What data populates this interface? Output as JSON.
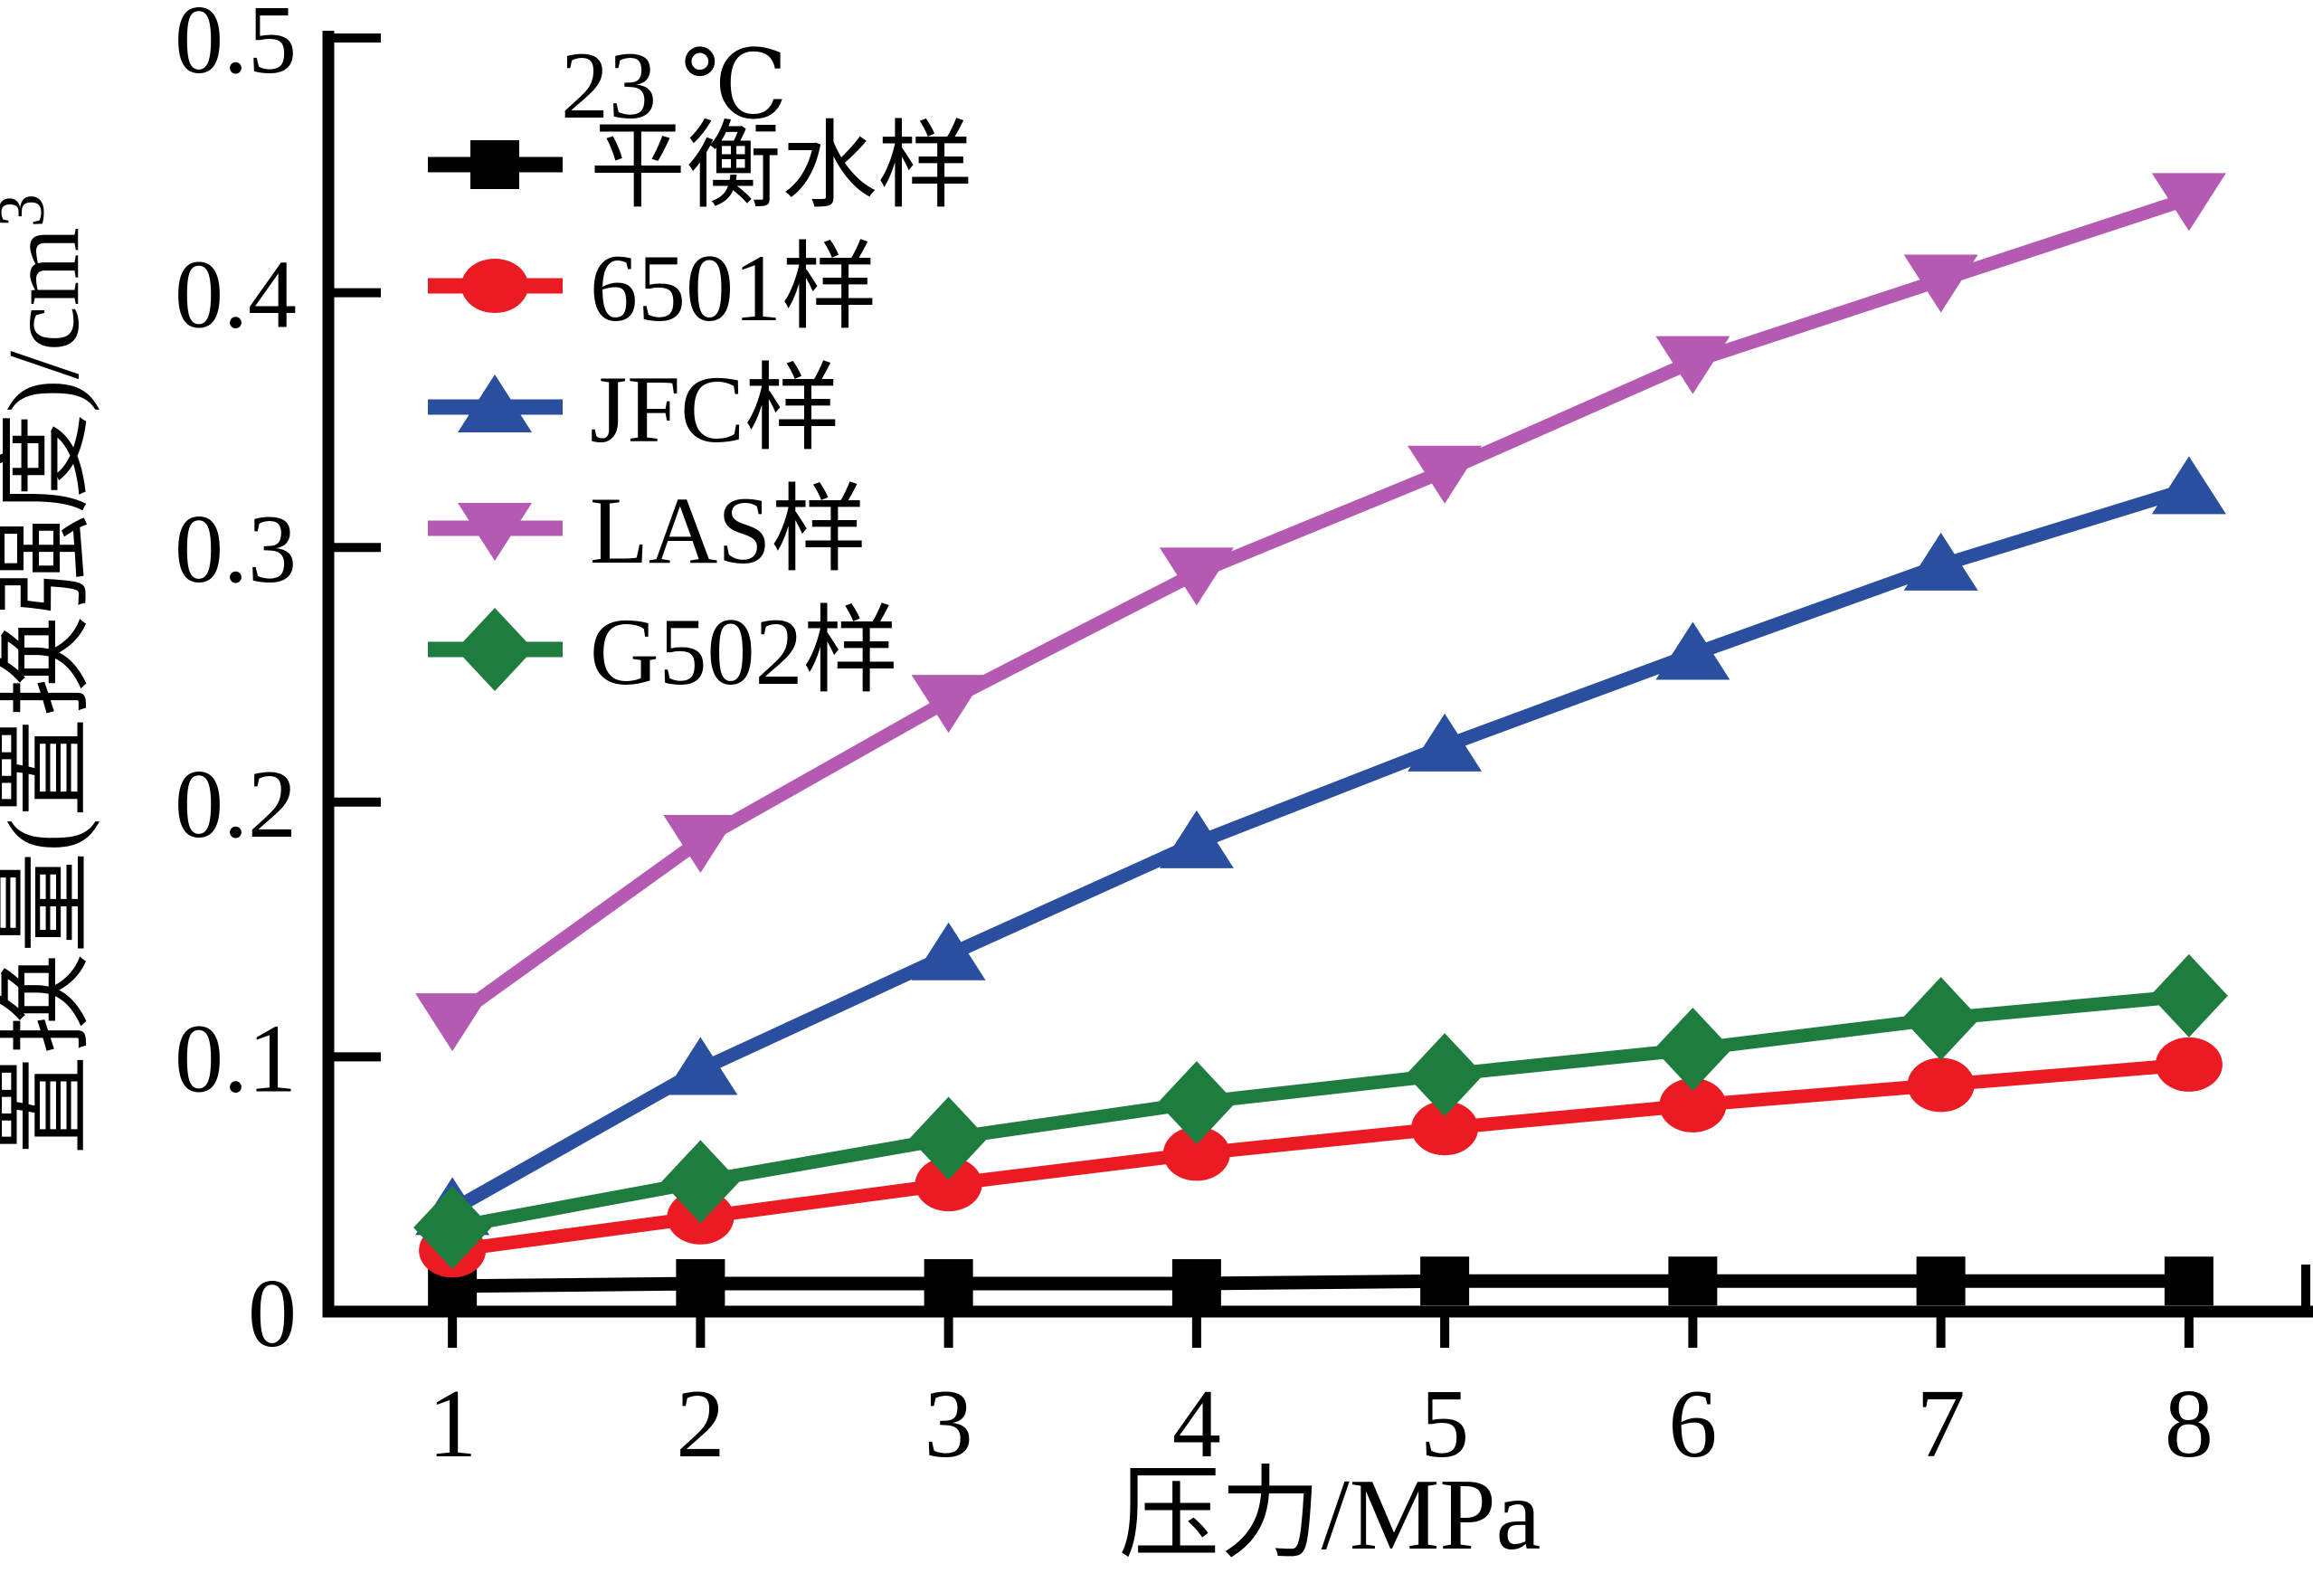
{
  "figure": {
    "background": "#ffffff"
  },
  "chart_data": {
    "type": "line",
    "legend_title": "23 ℃",
    "xlabel": "压力/MPa",
    "ylabel": "置换量(置换强度)/cm³",
    "ylabel_base": "置换量(置换强度)/cm",
    "ylabel_superscript": "3",
    "x": [
      1,
      2,
      3,
      4,
      5,
      6,
      7,
      8
    ],
    "xticks": [
      1,
      2,
      3,
      4,
      5,
      6,
      7,
      8
    ],
    "xtick_labels": [
      "1",
      "2",
      "3",
      "4",
      "5",
      "6",
      "7",
      "8"
    ],
    "xlim": [
      0.5,
      8.5
    ],
    "ylim": [
      0,
      0.5
    ],
    "yticks": [
      0,
      0.1,
      0.2,
      0.3,
      0.4,
      0.5
    ],
    "ytick_labels": [
      "0",
      "0.1",
      "0.2",
      "0.3",
      "0.4",
      "0.5"
    ],
    "grid": false,
    "legend_position": "top-left-inside",
    "axis_color": "#000000",
    "series": [
      {
        "name": "平衡水样",
        "marker": "square",
        "color": "#000000",
        "values": [
          0.01,
          0.011,
          0.011,
          0.011,
          0.012,
          0.012,
          0.012,
          0.012
        ]
      },
      {
        "name": "6501样",
        "marker": "circle",
        "color": "#ea1b22",
        "values": [
          0.024,
          0.037,
          0.05,
          0.062,
          0.072,
          0.081,
          0.089,
          0.097
        ]
      },
      {
        "name": "JFC样",
        "marker": "triangle-up",
        "color": "#2a4f9e",
        "values": [
          0.04,
          0.095,
          0.14,
          0.184,
          0.222,
          0.258,
          0.293,
          0.323
        ]
      },
      {
        "name": "LAS样",
        "marker": "triangle-down",
        "color": "#b55ab2",
        "values": [
          0.115,
          0.185,
          0.24,
          0.29,
          0.33,
          0.373,
          0.405,
          0.437
        ]
      },
      {
        "name": "G502样",
        "marker": "diamond",
        "color": "#1e7c3f",
        "values": [
          0.033,
          0.051,
          0.068,
          0.082,
          0.093,
          0.103,
          0.115,
          0.124
        ]
      }
    ]
  }
}
